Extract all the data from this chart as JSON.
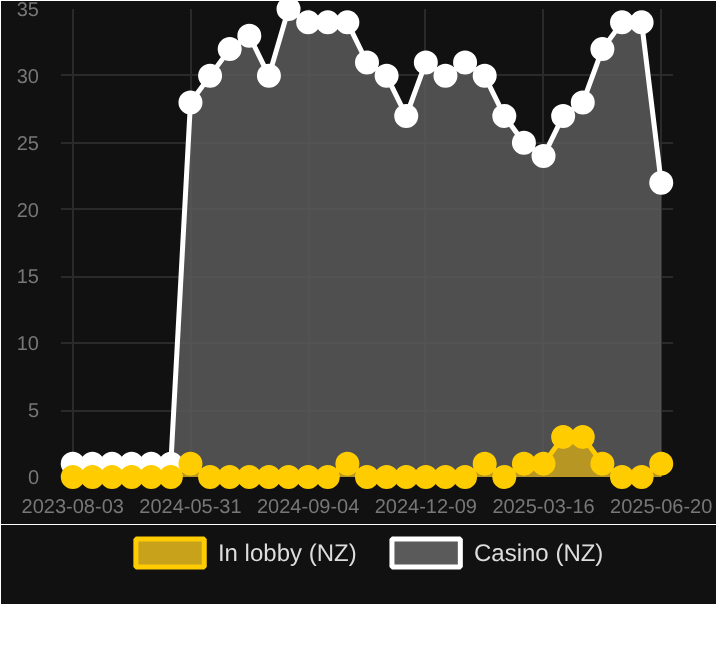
{
  "chart_data": {
    "type": "area",
    "categories": [
      "2023-08-03",
      null,
      null,
      null,
      null,
      null,
      "2024-05-31",
      null,
      null,
      null,
      null,
      null,
      "2024-09-04",
      null,
      null,
      null,
      null,
      null,
      "2024-12-09",
      null,
      null,
      null,
      null,
      null,
      "2025-03-16",
      null,
      null,
      null,
      null,
      null,
      "2025-06-20"
    ],
    "series": [
      {
        "name": "In lobby (NZ)",
        "color": "#ffcc00",
        "values": [
          0,
          0,
          0,
          0,
          0,
          0,
          1,
          0,
          0,
          0,
          0,
          0,
          0,
          0,
          1,
          0,
          0,
          0,
          0,
          0,
          0,
          1,
          0,
          1,
          1,
          3,
          3,
          1,
          0,
          0,
          1
        ]
      },
      {
        "name": "Casino (NZ)",
        "color": "#ffffff",
        "values": [
          1,
          1,
          1,
          1,
          1,
          1,
          28,
          30,
          32,
          33,
          30,
          35,
          34,
          34,
          34,
          31,
          30,
          27,
          31,
          30,
          31,
          30,
          27,
          25,
          24,
          27,
          28,
          32,
          34,
          34,
          22
        ]
      }
    ],
    "ylim": [
      0,
      35
    ],
    "yticks": [
      0,
      5,
      10,
      15,
      20,
      25,
      30,
      35
    ],
    "grid": true,
    "legend": "bottom",
    "marker": "circle"
  }
}
